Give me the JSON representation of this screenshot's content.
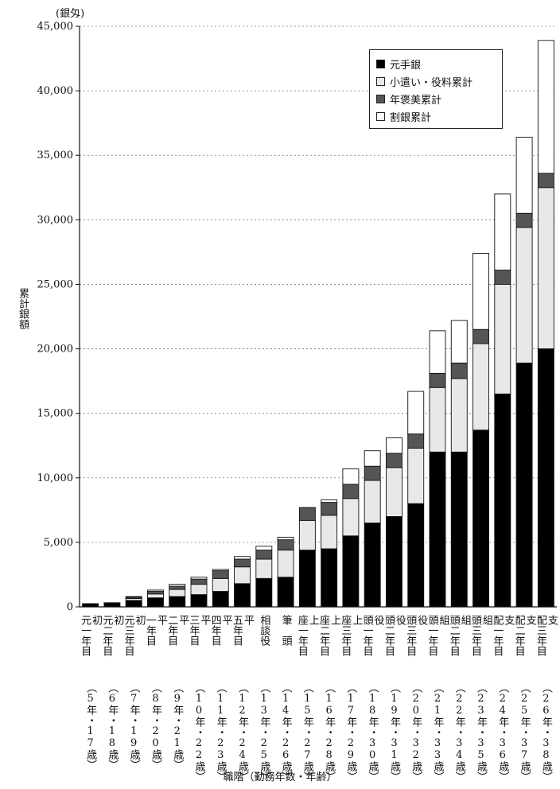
{
  "chart_data": {
    "type": "bar",
    "stacked": true,
    "unit_label": "(銀匁)",
    "ylabel": "累計銀額",
    "xlabel": "職階（勤務年数・年齢）",
    "ylim": [
      0,
      45000
    ],
    "yticks": [
      "0",
      "5,000",
      "10,000",
      "15,000",
      "20,000",
      "25,000",
      "30,000",
      "35,000",
      "40,000",
      "45,000"
    ],
    "grid": "dotted-horizontal",
    "legend_position": "top-right",
    "categories": [
      {
        "title": [
          "初",
          "元一年目"
        ],
        "years": "5年",
        "age": "17歳"
      },
      {
        "title": [
          "初",
          "元二年目"
        ],
        "years": "6年",
        "age": "18歳"
      },
      {
        "title": [
          "初",
          "元三年目"
        ],
        "years": "7年",
        "age": "19歳"
      },
      {
        "title": [
          "平",
          "一年目"
        ],
        "years": "8年",
        "age": "20歳"
      },
      {
        "title": [
          "平",
          "二年目"
        ],
        "years": "9年",
        "age": "21歳"
      },
      {
        "title": [
          "平",
          "三年目"
        ],
        "years": "10年",
        "age": "22歳"
      },
      {
        "title": [
          "平",
          "四年目"
        ],
        "years": "11年",
        "age": "23歳"
      },
      {
        "title": [
          "平",
          "五年目"
        ],
        "years": "12年",
        "age": "24歳"
      },
      {
        "title": [
          "相談役"
        ],
        "years": "13年",
        "age": "25歳"
      },
      {
        "title": [
          "筆　頭"
        ],
        "years": "14年",
        "age": "26歳"
      },
      {
        "title": [
          "上",
          "座一年目"
        ],
        "years": "15年",
        "age": "27歳"
      },
      {
        "title": [
          "上",
          "座二年目"
        ],
        "years": "16年",
        "age": "28歳"
      },
      {
        "title": [
          "上",
          "座三年目"
        ],
        "years": "17年",
        "age": "29歳"
      },
      {
        "title": [
          "役",
          "頭一年目"
        ],
        "years": "18年",
        "age": "30歳"
      },
      {
        "title": [
          "役",
          "頭二年目"
        ],
        "years": "19年",
        "age": "31歳"
      },
      {
        "title": [
          "役",
          "頭三年目"
        ],
        "years": "20年",
        "age": "32歳"
      },
      {
        "title": [
          "組",
          "頭一年目"
        ],
        "years": "21年",
        "age": "33歳"
      },
      {
        "title": [
          "組",
          "頭二年目"
        ],
        "years": "22年",
        "age": "34歳"
      },
      {
        "title": [
          "組",
          "頭三年目"
        ],
        "years": "23年",
        "age": "35歳"
      },
      {
        "title": [
          "支",
          "配一年目"
        ],
        "years": "24年",
        "age": "36歳"
      },
      {
        "title": [
          "支",
          "配二年目"
        ],
        "years": "25年",
        "age": "37歳"
      },
      {
        "title": [
          "支",
          "配三年目"
        ],
        "years": "26年",
        "age": "38歳"
      }
    ],
    "series": [
      {
        "name": "元手銀",
        "color": "#000000",
        "values": [
          250,
          320,
          500,
          700,
          800,
          950,
          1200,
          1800,
          2200,
          2300,
          4400,
          4500,
          5500,
          6500,
          7000,
          8000,
          12000,
          12000,
          13700,
          16500,
          18900,
          20000
        ]
      },
      {
        "name": "小遣い・役料累計",
        "color": "#e8e8e8",
        "values": [
          0,
          0,
          150,
          300,
          550,
          800,
          1000,
          1300,
          1500,
          2100,
          2300,
          2600,
          2900,
          3300,
          3800,
          4300,
          5000,
          5700,
          6700,
          8500,
          10500,
          12500
        ]
      },
      {
        "name": "年褒美累計",
        "color": "#555555",
        "values": [
          0,
          0,
          100,
          200,
          250,
          400,
          600,
          600,
          700,
          800,
          1000,
          1000,
          1100,
          1100,
          1100,
          1100,
          1100,
          1200,
          1100,
          1100,
          1100,
          1100
        ]
      },
      {
        "name": "割銀累計",
        "color": "#ffffff",
        "values": [
          0,
          0,
          50,
          100,
          150,
          150,
          100,
          200,
          300,
          200,
          0,
          200,
          1200,
          1200,
          1200,
          3300,
          3300,
          3300,
          5900,
          5900,
          5900,
          10300
        ]
      }
    ]
  }
}
